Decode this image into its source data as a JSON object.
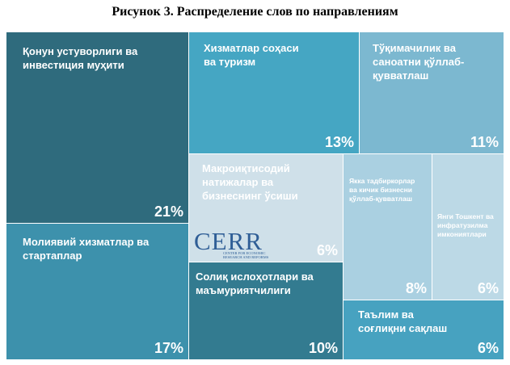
{
  "figure": {
    "title": "Рисунок 3. Распределение слов по направлениям"
  },
  "chart_data": {
    "type": "treemap",
    "value_unit": "%",
    "items": [
      {
        "label": "Қонун устуворлиги ва инвестиция муҳити",
        "value": 21,
        "color": "#2f6b7d"
      },
      {
        "label": "Молиявий хизматлар ва стартаплар",
        "value": 17,
        "color": "#3d91ac"
      },
      {
        "label": "Хизматлар соҳаси ва туризм",
        "value": 13,
        "color": "#45a6c3"
      },
      {
        "label": "Тўқимачилик ва саноатни қўллаб-қувватлаш",
        "value": 11,
        "color": "#7cb8d0"
      },
      {
        "label": "Солиқ ислоҳотлари ва маъмуриятчилиги",
        "value": 10,
        "color": "#337b90"
      },
      {
        "label": "Макроиқтисодий натижалар ва бизнеснинг ўсиши",
        "value": 6,
        "color": "#cfe0e9"
      },
      {
        "label": "Якка тадбиркорлар ва кичик бизнесни қўллаб-қувватлаш",
        "value": 8,
        "color": "#aad0e1"
      },
      {
        "label": "Янги Тошкент ва инфратузилма имкониятлари",
        "value": 6,
        "color": "#bcd9e6"
      },
      {
        "label": "Таълим ва соғлиқни сақлаш",
        "value": 6,
        "color": "#47a2c0"
      }
    ]
  },
  "logo": {
    "name": "CERR",
    "subtitle_line1": "CENTER FOR ECONOMIC",
    "subtitle_line2": "RESEARCH AND REFORMS"
  }
}
